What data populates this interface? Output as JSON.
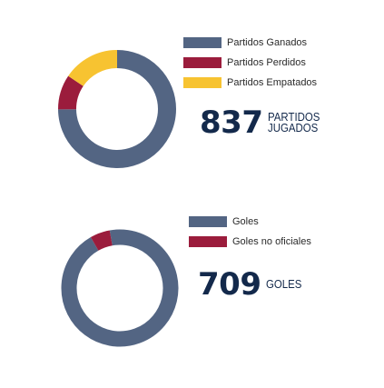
{
  "chart_data": [
    {
      "type": "pie",
      "categories": [
        "Partidos Ganados",
        "Partidos Perdidos",
        "Partidos Empatados"
      ],
      "values": [
        627,
        80,
        130
      ],
      "colors": [
        "#536583",
        "#9b1c3c",
        "#f7c331"
      ],
      "legend_position": "right"
    },
    {
      "type": "pie",
      "categories": [
        "Goles",
        "Goles no oficiales"
      ],
      "values": [
        670,
        39
      ],
      "colors": [
        "#536583",
        "#9b1c3c"
      ],
      "legend_position": "right"
    }
  ],
  "stats": {
    "partidos": {
      "number": "837",
      "label": "PARTIDOS JUGADOS"
    },
    "goles": {
      "number": "709",
      "label": "GOLES"
    }
  }
}
